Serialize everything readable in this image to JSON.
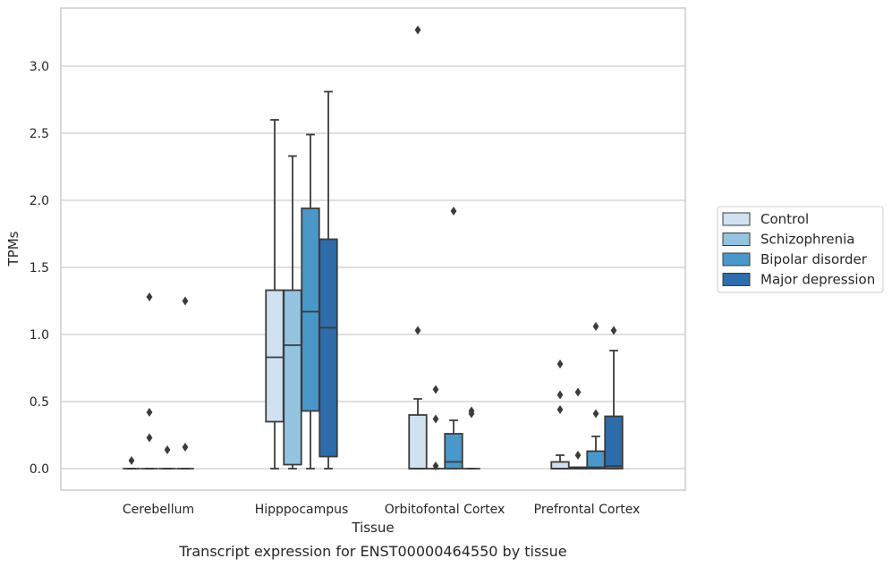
{
  "chart_data": {
    "type": "box",
    "title": "",
    "caption": "Transcript expression for ENST00000464550 by tissue",
    "xlabel": "Tissue",
    "ylabel": "TPMs",
    "ylim": [
      -0.16,
      3.43
    ],
    "yticks": [
      0.0,
      0.5,
      1.0,
      1.5,
      2.0,
      2.5,
      3.0
    ],
    "ytick_labels": [
      "0.0",
      "0.5",
      "1.0",
      "1.5",
      "2.0",
      "2.5",
      "3.0"
    ],
    "grid": "horizontal",
    "legend_position": "right",
    "categories": [
      "Cerebellum",
      "Hipppocampus",
      "Orbitofontal Cortex",
      "Prefrontal Cortex"
    ],
    "series": [
      {
        "name": "Control",
        "color": "#d0e1f2",
        "boxes": [
          {
            "whislo": 0.0,
            "q1": 0.0,
            "med": 0.0,
            "q3": 0.0,
            "whishi": 0.0,
            "fliers": [
              0.06
            ]
          },
          {
            "whislo": 0.0,
            "q1": 0.35,
            "med": 0.83,
            "q3": 1.33,
            "whishi": 2.6,
            "fliers": []
          },
          {
            "whislo": 0.0,
            "q1": 0.0,
            "med": 0.0,
            "q3": 0.4,
            "whishi": 0.52,
            "fliers": [
              1.03,
              3.27
            ]
          },
          {
            "whislo": 0.0,
            "q1": 0.0,
            "med": 0.0,
            "q3": 0.05,
            "whishi": 0.1,
            "fliers": [
              0.44,
              0.55,
              0.78
            ]
          }
        ]
      },
      {
        "name": "Schizophrenia",
        "color": "#94c4df",
        "boxes": [
          {
            "whislo": 0.0,
            "q1": 0.0,
            "med": 0.0,
            "q3": 0.0,
            "whishi": 0.0,
            "fliers": [
              0.23,
              0.42,
              1.28
            ]
          },
          {
            "whislo": 0.0,
            "q1": 0.03,
            "med": 0.92,
            "q3": 1.33,
            "whishi": 2.33,
            "fliers": []
          },
          {
            "whislo": 0.0,
            "q1": 0.0,
            "med": 0.0,
            "q3": 0.0,
            "whishi": 0.0,
            "fliers": [
              0.02,
              0.37,
              0.59
            ]
          },
          {
            "whislo": 0.0,
            "q1": 0.0,
            "med": 0.0,
            "q3": 0.01,
            "whishi": 0.01,
            "fliers": [
              0.1,
              0.57
            ]
          }
        ]
      },
      {
        "name": "Bipolar disorder",
        "color": "#4a98c9",
        "boxes": [
          {
            "whislo": 0.0,
            "q1": 0.0,
            "med": 0.0,
            "q3": 0.0,
            "whishi": 0.0,
            "fliers": [
              0.14
            ]
          },
          {
            "whislo": 0.0,
            "q1": 0.43,
            "med": 1.17,
            "q3": 1.94,
            "whishi": 2.49,
            "fliers": []
          },
          {
            "whislo": 0.0,
            "q1": 0.0,
            "med": 0.05,
            "q3": 0.26,
            "whishi": 0.36,
            "fliers": [
              1.92
            ]
          },
          {
            "whislo": 0.0,
            "q1": 0.0,
            "med": 0.01,
            "q3": 0.13,
            "whishi": 0.24,
            "fliers": [
              0.41,
              1.06
            ]
          }
        ]
      },
      {
        "name": "Major depression",
        "color": "#2e6daa",
        "boxes": [
          {
            "whislo": 0.0,
            "q1": 0.0,
            "med": 0.0,
            "q3": 0.0,
            "whishi": 0.0,
            "fliers": [
              0.16,
              1.25
            ]
          },
          {
            "whislo": 0.0,
            "q1": 0.09,
            "med": 1.05,
            "q3": 1.71,
            "whishi": 2.81,
            "fliers": []
          },
          {
            "whislo": 0.0,
            "q1": 0.0,
            "med": 0.0,
            "q3": 0.0,
            "whishi": 0.0,
            "fliers": [
              0.41,
              0.43
            ]
          },
          {
            "whislo": 0.0,
            "q1": 0.0,
            "med": 0.02,
            "q3": 0.39,
            "whishi": 0.88,
            "fliers": [
              1.03
            ]
          }
        ]
      }
    ],
    "style": {
      "grid_color": "#cccccc",
      "frame_color": "#cccccc",
      "line_color": "#3b3b3b"
    }
  }
}
